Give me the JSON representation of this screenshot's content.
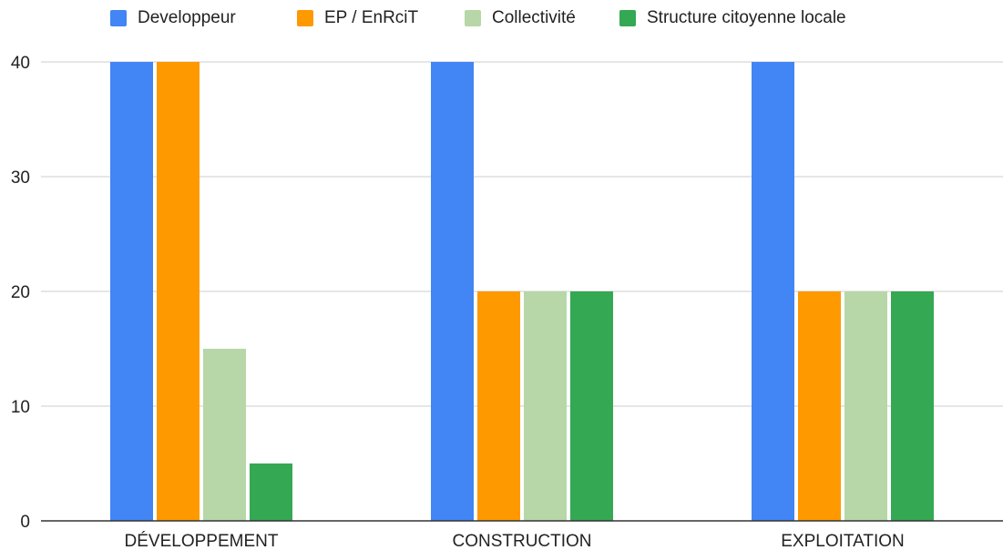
{
  "chart_data": {
    "type": "bar",
    "categories": [
      "DÉVELOPPEMENT",
      "CONSTRUCTION",
      "EXPLOITATION"
    ],
    "series": [
      {
        "name": "Developpeur",
        "color": "#4285f4",
        "values": [
          40,
          40,
          40
        ]
      },
      {
        "name": "EP / EnRciT",
        "color": "#ff9900",
        "values": [
          40,
          20,
          20
        ]
      },
      {
        "name": "Collectivité",
        "color": "#b7d7a8",
        "values": [
          15,
          20,
          20
        ]
      },
      {
        "name": "Structure citoyenne locale",
        "color": "#34a853",
        "values": [
          5,
          20,
          20
        ]
      }
    ],
    "yticks": [
      "0",
      "10",
      "20",
      "30",
      "40"
    ],
    "ylim": [
      0,
      40
    ],
    "grid": true,
    "legend_position": "top-center",
    "title": "",
    "xlabel": "",
    "ylabel": ""
  }
}
